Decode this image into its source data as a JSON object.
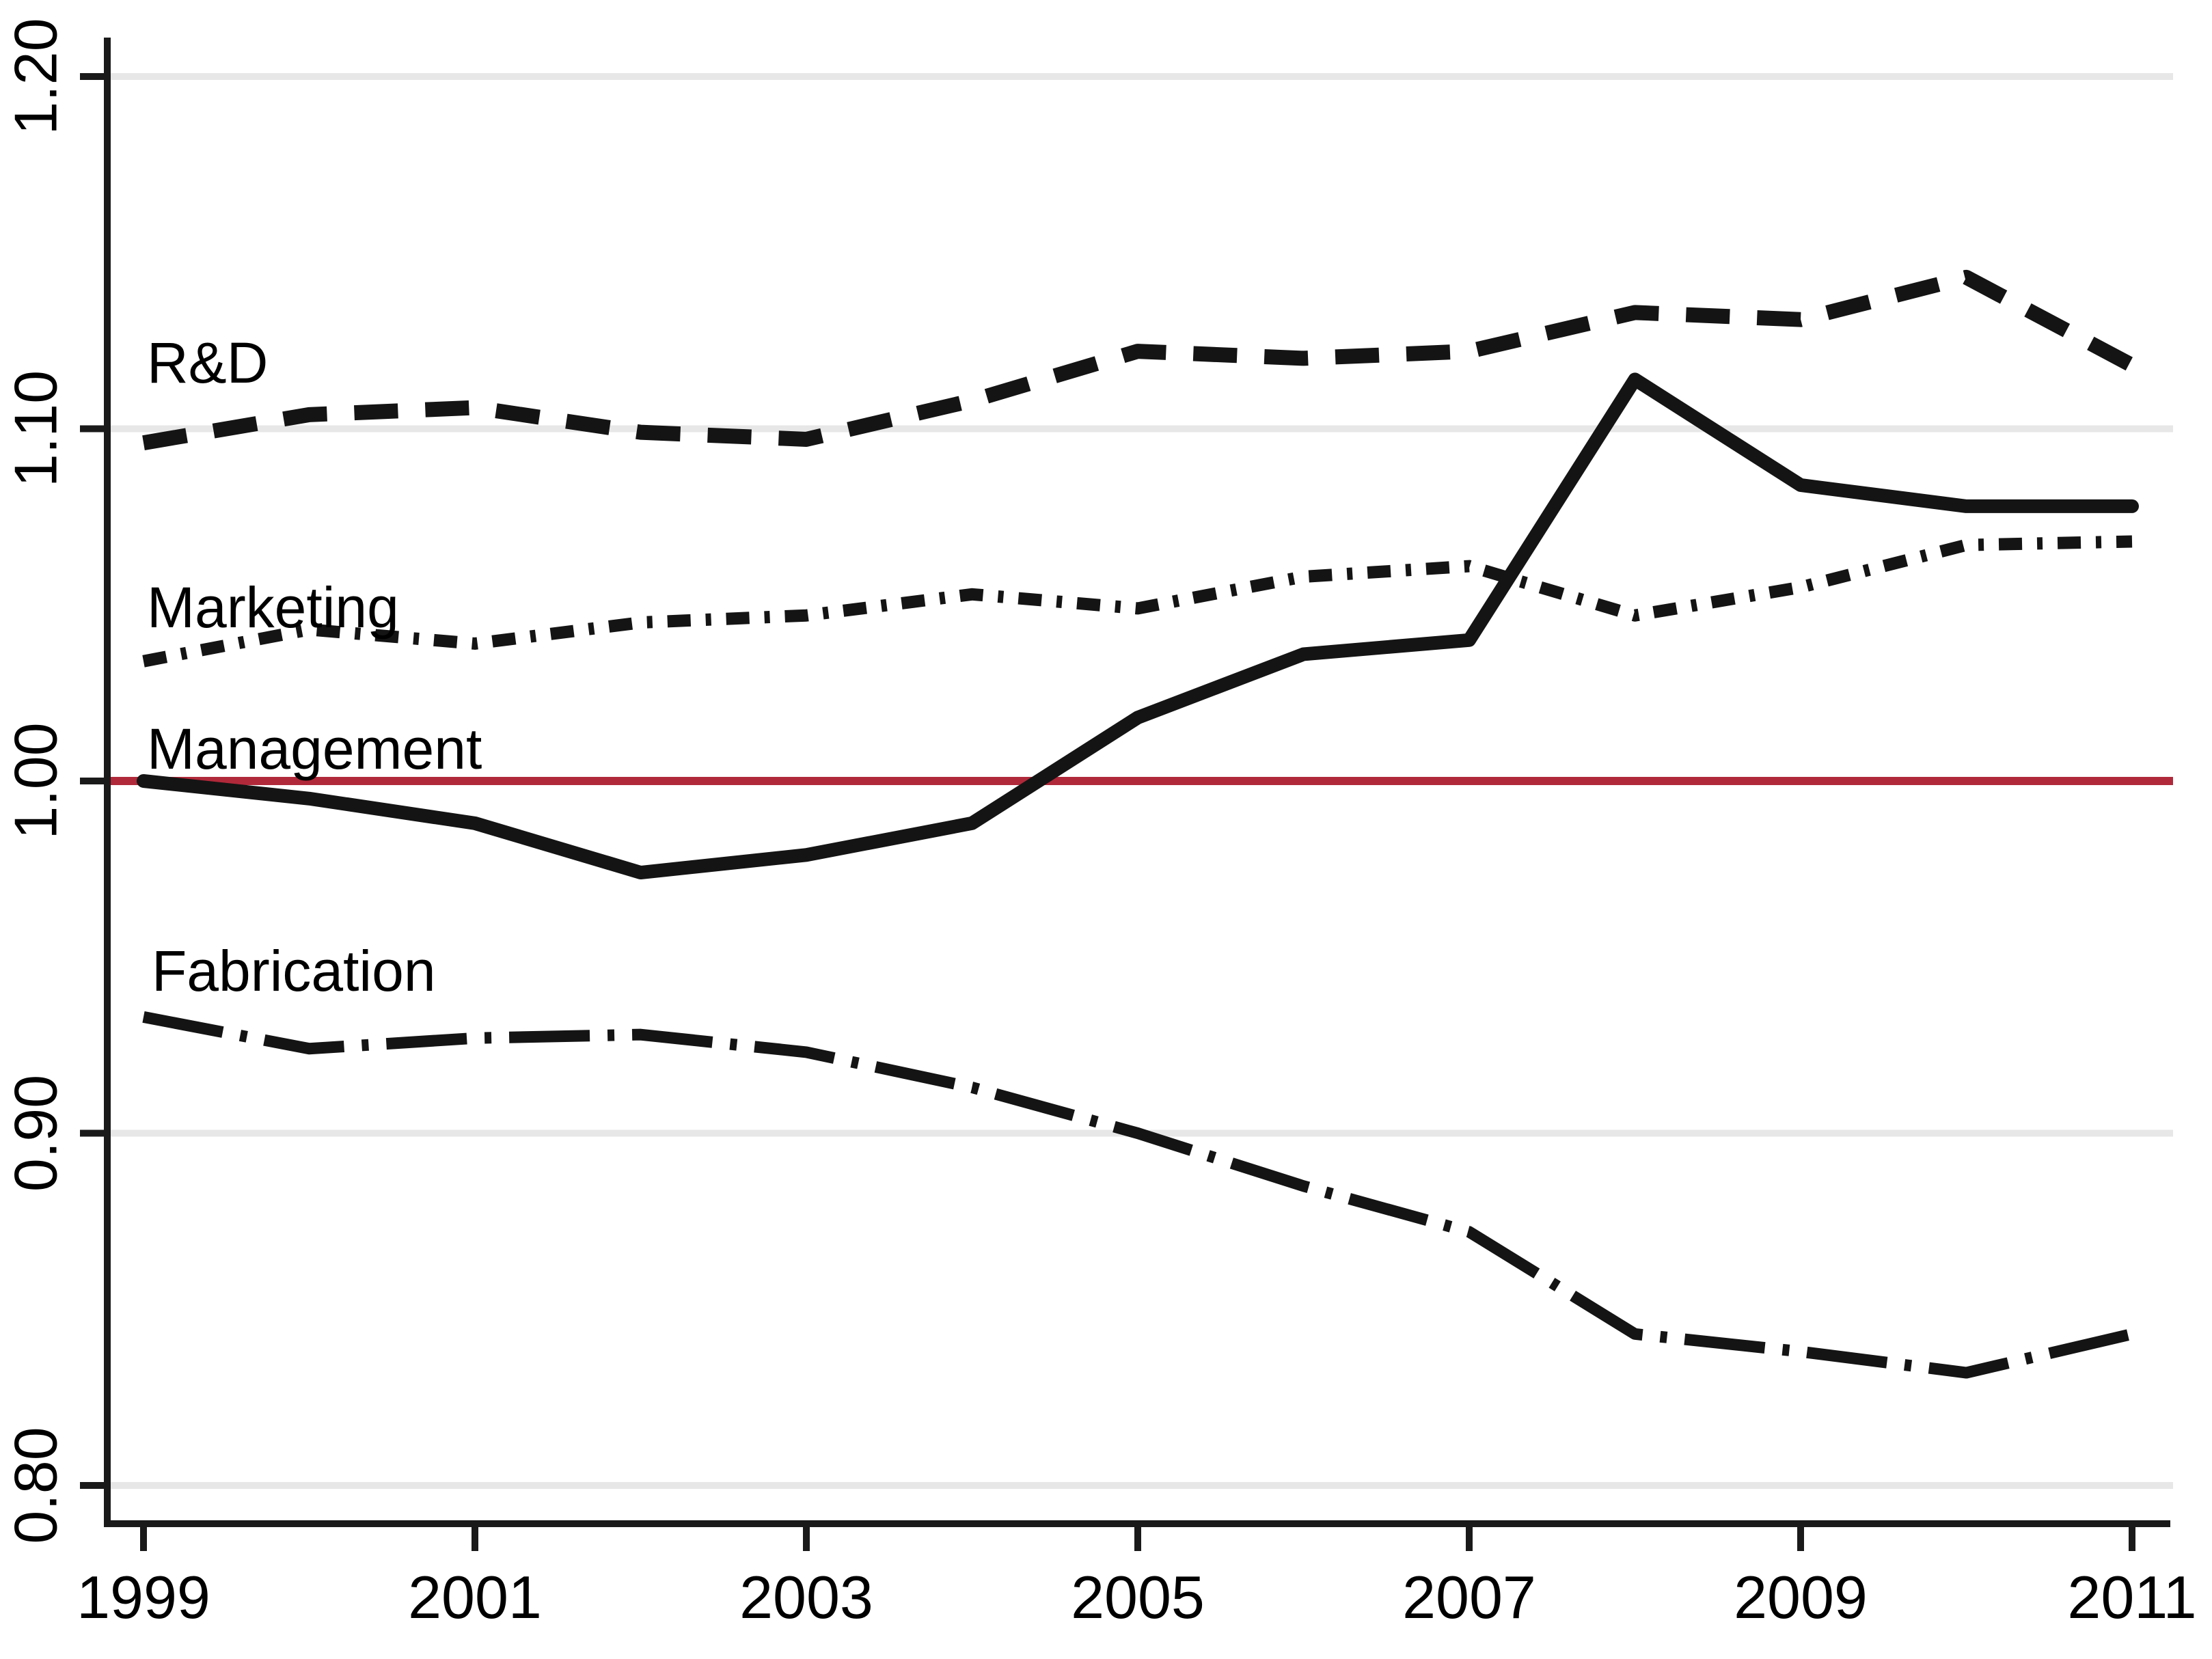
{
  "figure": {
    "background_color": "#ffffff"
  },
  "chart_data": {
    "type": "line",
    "title": "",
    "xlabel": "",
    "ylabel": "",
    "x": [
      1999,
      2000,
      2001,
      2002,
      2003,
      2004,
      2005,
      2006,
      2007,
      2008,
      2009,
      2010,
      2011
    ],
    "x_tick_values": [
      1999,
      2001,
      2003,
      2005,
      2007,
      2009,
      2011
    ],
    "x_tick_labels": [
      "1999",
      "2001",
      "2003",
      "2005",
      "2007",
      "2009",
      "2011"
    ],
    "y_tick_values": [
      0.8,
      0.9,
      1.0,
      1.1,
      1.2
    ],
    "y_tick_labels": [
      "0.80",
      "0.90",
      "1.00",
      "1.10",
      "1.20"
    ],
    "xlim": [
      1998.8,
      2011.2
    ],
    "ylim": [
      0.789,
      1.211
    ],
    "grid": "horizontal-gridlines-on",
    "legend_position": "inline-labels-near-left-of-lines",
    "reference_line": {
      "value": 1.0
    },
    "colors": {
      "series_stroke": "#141414",
      "reference_line": "#b0293a",
      "gridline": "#e7e7e7",
      "axis": "#1a1a1a",
      "text": "#000000"
    },
    "series": [
      {
        "name": "R&D",
        "line_style": "dashed",
        "values": [
          1.096,
          1.104,
          1.106,
          1.099,
          1.097,
          1.108,
          1.122,
          1.12,
          1.122,
          1.133,
          1.131,
          1.143,
          1.118
        ]
      },
      {
        "name": "Marketing",
        "line_style": "dash-dot",
        "values": [
          1.034,
          1.043,
          1.039,
          1.045,
          1.047,
          1.053,
          1.049,
          1.058,
          1.061,
          1.047,
          1.055,
          1.067,
          1.068
        ]
      },
      {
        "name": "Management",
        "line_style": "solid",
        "values": [
          1.0,
          0.995,
          0.988,
          0.974,
          0.979,
          0.988,
          1.018,
          1.036,
          1.04,
          1.114,
          1.084,
          1.078,
          1.078
        ]
      },
      {
        "name": "Fabrication",
        "line_style": "long-dash-dot",
        "values": [
          0.933,
          0.924,
          0.927,
          0.928,
          0.923,
          0.913,
          0.9,
          0.885,
          0.872,
          0.843,
          0.838,
          0.832,
          0.843
        ]
      }
    ]
  }
}
